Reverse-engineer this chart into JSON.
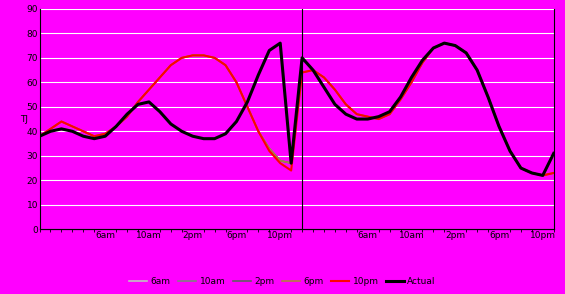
{
  "background_color": "#ff00ff",
  "ylim": [
    0,
    90
  ],
  "yticks": [
    0,
    10,
    20,
    30,
    40,
    50,
    60,
    70,
    80,
    90
  ],
  "ylabel": "TJ",
  "grid_color": "#ffffff",
  "vertical_line_x": 24,
  "series_colors": {
    "6am": "#c0c0c0",
    "10am": "#808080",
    "2pm": "#606060",
    "6pm": "#b08040",
    "10pm": "#ff0000",
    "Actual": "#000000"
  },
  "series_lw": {
    "6am": 1.2,
    "10am": 1.2,
    "2pm": 1.2,
    "6pm": 1.2,
    "10pm": 1.5,
    "Actual": 2.2
  },
  "legend_order": [
    "6am",
    "10am",
    "2pm",
    "6pm",
    "10pm",
    "Actual"
  ],
  "xtick_positions": [
    6,
    10,
    14,
    18,
    22,
    30,
    34,
    38,
    42,
    46
  ],
  "xtick_labels": [
    "6am",
    "10am",
    "2pm",
    "6pm",
    "10pm",
    "6am",
    "10am",
    "2pm",
    "6pm",
    "10pm"
  ],
  "hour_tick_positions": [
    0,
    1,
    2,
    3,
    4,
    5,
    6,
    7,
    8,
    9,
    10,
    11,
    12,
    13,
    14,
    15,
    16,
    17,
    18,
    19,
    20,
    21,
    22,
    23,
    24,
    25,
    26,
    27,
    28,
    29,
    30,
    31,
    32,
    33,
    34,
    35,
    36,
    37,
    38,
    39,
    40,
    41,
    42,
    43,
    44,
    45,
    46,
    47
  ],
  "actual_day1": [
    38,
    40,
    41,
    40,
    38,
    37,
    38,
    42,
    47,
    51,
    52,
    48,
    43,
    40,
    38,
    37,
    37,
    39,
    44,
    52,
    63,
    73,
    76,
    27
  ],
  "actual_day2": [
    70,
    65,
    58,
    51,
    47,
    45,
    45,
    46,
    48,
    54,
    62,
    69,
    74,
    76,
    75,
    72,
    65,
    54,
    42,
    32,
    25,
    23,
    22,
    31
  ],
  "forecast_6am_day1": [
    38,
    41,
    44,
    42,
    40,
    38,
    39,
    42,
    46,
    52,
    57,
    62,
    67,
    70,
    71,
    71,
    70,
    67,
    60,
    50,
    40,
    33,
    28,
    27
  ],
  "forecast_6am_day2": [
    64,
    65,
    62,
    57,
    51,
    47,
    46,
    45,
    47,
    53,
    60,
    68,
    74,
    76,
    75,
    72,
    65,
    54,
    42,
    32,
    25,
    23,
    22,
    23
  ],
  "forecast_10am_day1": [
    38,
    41,
    44,
    42,
    40,
    38,
    39,
    42,
    46,
    52,
    57,
    62,
    67,
    70,
    71,
    71,
    70,
    67,
    60,
    50,
    40,
    33,
    28,
    27
  ],
  "forecast_10am_day2": [
    64,
    65,
    62,
    57,
    51,
    47,
    46,
    45,
    47,
    53,
    60,
    68,
    74,
    76,
    75,
    72,
    65,
    54,
    42,
    32,
    25,
    23,
    22,
    23
  ],
  "forecast_2pm_day1": [
    38,
    41,
    44,
    42,
    40,
    38,
    39,
    42,
    46,
    52,
    57,
    62,
    67,
    70,
    71,
    71,
    70,
    67,
    60,
    50,
    40,
    33,
    28,
    27
  ],
  "forecast_2pm_day2": [
    64,
    65,
    62,
    57,
    51,
    47,
    46,
    45,
    47,
    53,
    60,
    68,
    74,
    76,
    75,
    72,
    65,
    54,
    42,
    32,
    25,
    23,
    22,
    23
  ],
  "forecast_6pm_day1": [
    38,
    41,
    44,
    42,
    40,
    38,
    39,
    42,
    46,
    52,
    57,
    62,
    67,
    70,
    71,
    71,
    70,
    67,
    60,
    50,
    40,
    33,
    28,
    27
  ],
  "forecast_6pm_day2": [
    64,
    65,
    62,
    57,
    51,
    47,
    46,
    45,
    47,
    53,
    60,
    68,
    74,
    76,
    75,
    72,
    65,
    54,
    42,
    32,
    25,
    23,
    22,
    23
  ],
  "forecast_10pm_day1": [
    38,
    41,
    44,
    42,
    40,
    38,
    39,
    42,
    46,
    52,
    57,
    62,
    67,
    70,
    71,
    71,
    70,
    67,
    60,
    50,
    40,
    32,
    27,
    24
  ],
  "forecast_10pm_day2": [
    64,
    65,
    62,
    57,
    51,
    47,
    46,
    45,
    47,
    53,
    60,
    68,
    74,
    76,
    75,
    72,
    65,
    54,
    42,
    32,
    25,
    23,
    22,
    23
  ]
}
